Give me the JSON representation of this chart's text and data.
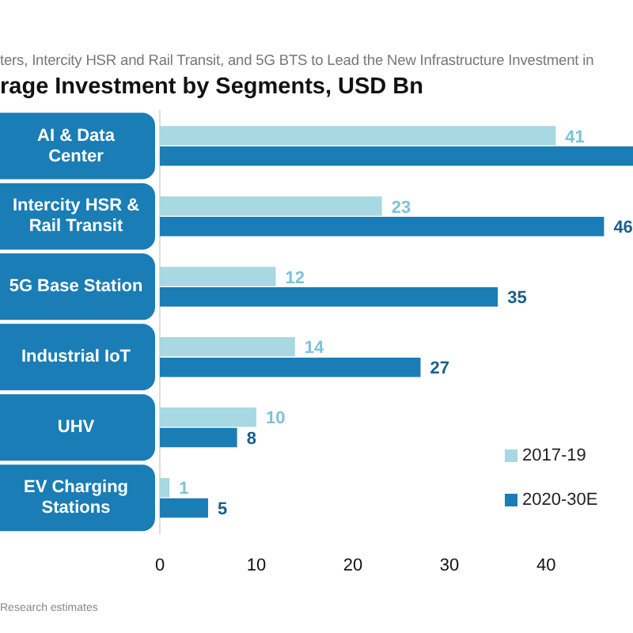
{
  "chart_data": {
    "type": "bar",
    "orientation": "horizontal",
    "title": "ters, Intercity HSR and Rail Transit, and 5G BTS to Lead the New Infrastructure Investment in",
    "subtitle": "rage Investment by Segments, USD Bn",
    "categories": [
      "AI & Data Center",
      "Intercity HSR & Rail Transit",
      "5G Base Station",
      "Industrial IoT",
      "UHV",
      "EV Charging Stations"
    ],
    "series": [
      {
        "name": "2017-19",
        "color": "#a8d8e2",
        "values": [
          41,
          23,
          12,
          14,
          10,
          1
        ],
        "value_labels": [
          "41",
          "23",
          "12",
          "14",
          "10",
          "1"
        ]
      },
      {
        "name": "2020-30E",
        "color": "#1a7db5",
        "values": [
          49,
          46,
          35,
          27,
          8,
          5
        ],
        "value_labels": [
          null,
          "46",
          "35",
          "27",
          "8",
          "5"
        ]
      }
    ],
    "xlim": [
      0,
      49
    ],
    "xticks": [
      0,
      10,
      20,
      30,
      40
    ],
    "grid": false,
    "legend": "bottom right",
    "annotations": [
      "Research estimates"
    ]
  }
}
